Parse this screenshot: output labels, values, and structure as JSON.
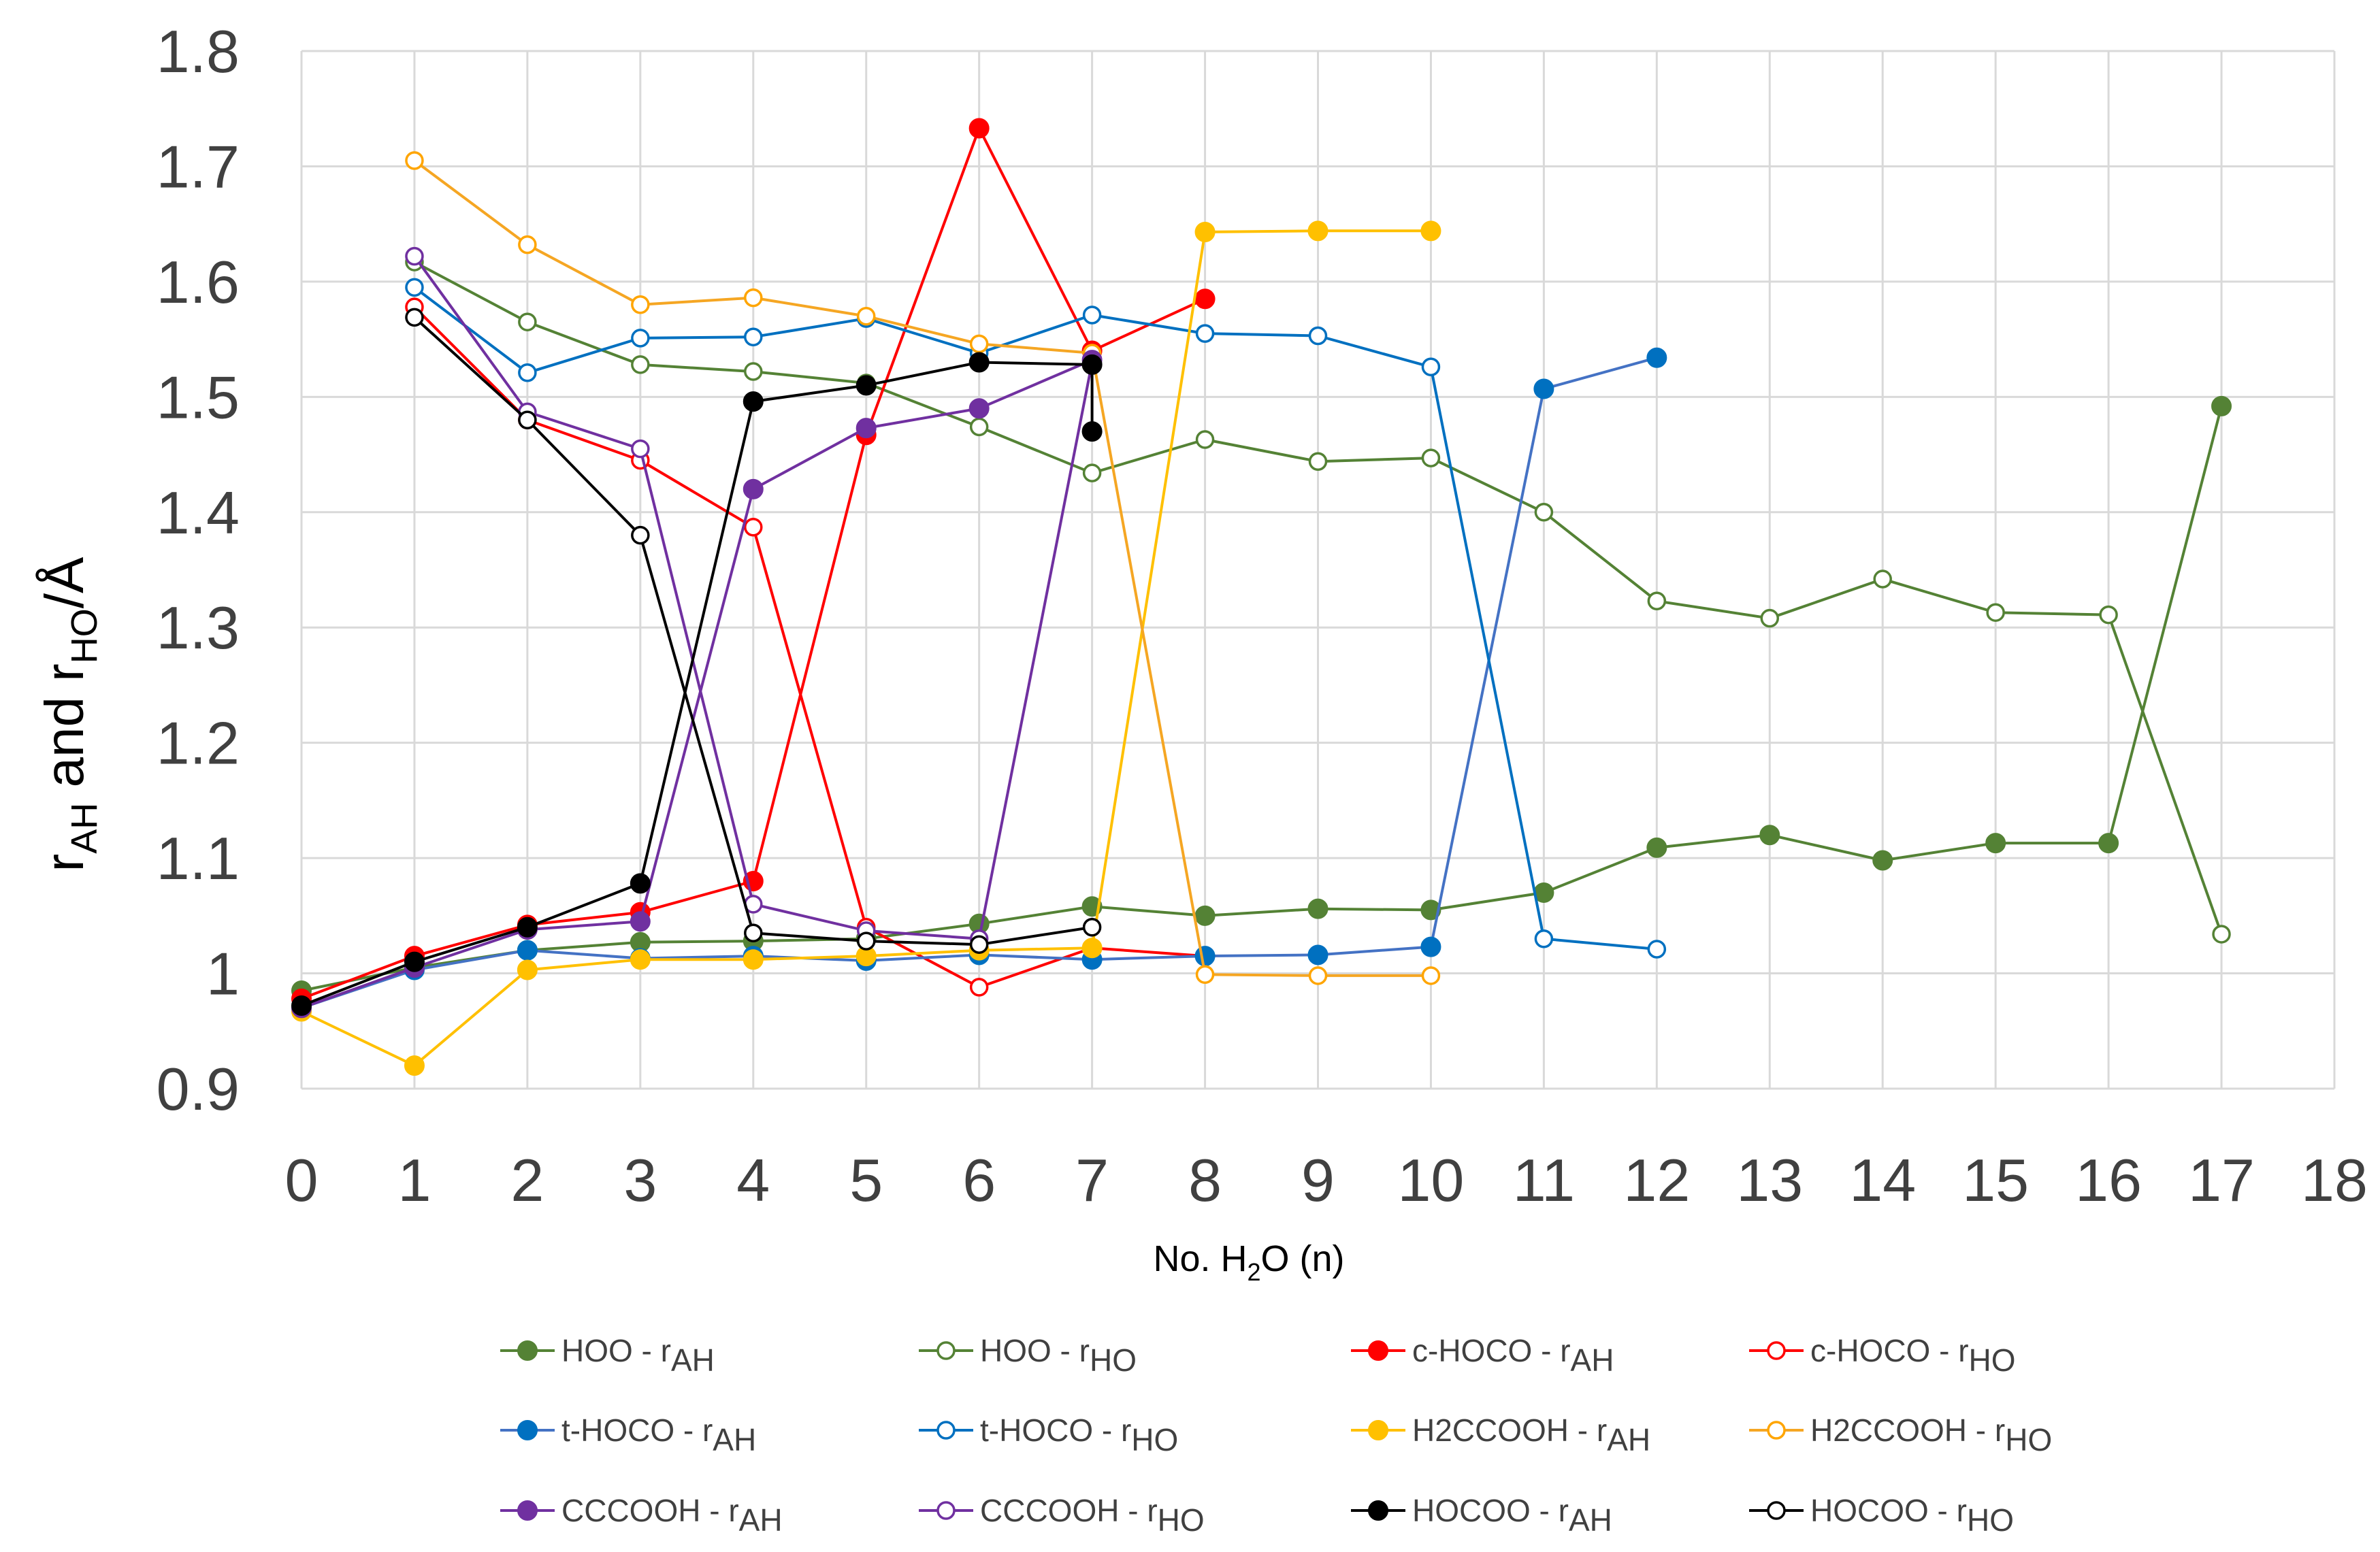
{
  "chart_data": {
    "type": "line",
    "title": "",
    "xlabel": {
      "main": "No. H",
      "sub": "2",
      "rest": "O (n)"
    },
    "ylabel": {
      "r": "r",
      "ah": "AH",
      "and": " and r",
      "ho": "HO",
      "unit": "/Å"
    },
    "xlim": [
      0,
      18
    ],
    "ylim": [
      0.9,
      1.8
    ],
    "xticks": [
      "0",
      "1",
      "2",
      "3",
      "4",
      "5",
      "6",
      "7",
      "8",
      "9",
      "10",
      "11",
      "12",
      "13",
      "14",
      "15",
      "16",
      "17",
      "18"
    ],
    "yticks": [
      "0.9",
      "1",
      "1.1",
      "1.2",
      "1.3",
      "1.4",
      "1.5",
      "1.6",
      "1.7",
      "1.8"
    ],
    "grid": true,
    "legend_position": "bottom",
    "series": [
      {
        "name": "HOO - r",
        "sub": "AH",
        "color": "#548235",
        "filled": true,
        "line_color": "#548235",
        "x": [
          0,
          1,
          2,
          3,
          4,
          5,
          6,
          7,
          8,
          9,
          10,
          11,
          12,
          13,
          14,
          15,
          16,
          17
        ],
        "y": [
          0.985,
          1.005,
          1.02,
          1.027,
          1.028,
          1.03,
          1.043,
          1.058,
          1.05,
          1.056,
          1.055,
          1.07,
          1.109,
          1.12,
          1.098,
          1.113,
          1.113,
          1.492
        ]
      },
      {
        "name": "HOO - r",
        "sub": "HO",
        "color": "#548235",
        "filled": false,
        "line_color": "#548235",
        "x": [
          1,
          2,
          3,
          4,
          5,
          6,
          7,
          8,
          9,
          10,
          11,
          12,
          13,
          14,
          15,
          16,
          17
        ],
        "y": [
          1.617,
          1.565,
          1.528,
          1.522,
          1.512,
          1.474,
          1.434,
          1.463,
          1.444,
          1.447,
          1.4,
          1.323,
          1.308,
          1.342,
          1.313,
          1.311,
          1.034
        ]
      },
      {
        "name": "c-HOCO - r",
        "sub": "AH",
        "color": "#ff0000",
        "filled": true,
        "line_color": "#ff0000",
        "x": [
          0,
          1,
          2,
          3,
          4,
          5,
          6,
          7,
          8
        ],
        "y": [
          0.978,
          1.015,
          1.042,
          1.053,
          1.08,
          1.467,
          1.733,
          1.54,
          1.585
        ]
      },
      {
        "name": "c-HOCO - r",
        "sub": "HO",
        "color": "#ff0000",
        "filled": false,
        "line_color": "#ff0000",
        "x": [
          1,
          2,
          3,
          4,
          5,
          6,
          7,
          8
        ],
        "y": [
          1.578,
          1.48,
          1.445,
          1.387,
          1.04,
          0.988,
          1.022,
          1.015
        ]
      },
      {
        "name": "t-HOCO - r",
        "sub": "AH",
        "color": "#0070c0",
        "filled": true,
        "line_color": "#4472c4",
        "x": [
          0,
          1,
          2,
          3,
          4,
          5,
          6,
          7,
          8,
          9,
          10,
          11,
          12
        ],
        "y": [
          0.97,
          1.003,
          1.02,
          1.013,
          1.015,
          1.011,
          1.016,
          1.012,
          1.015,
          1.016,
          1.023,
          1.507,
          1.534
        ]
      },
      {
        "name": "t-HOCO - r",
        "sub": "HO",
        "color": "#0070c0",
        "filled": false,
        "line_color": "#0070c0",
        "x": [
          1,
          2,
          3,
          4,
          5,
          6,
          7,
          8,
          9,
          10,
          11,
          12
        ],
        "y": [
          1.595,
          1.521,
          1.551,
          1.552,
          1.568,
          1.538,
          1.571,
          1.555,
          1.553,
          1.526,
          1.03,
          1.021
        ]
      },
      {
        "name": "H2CCOOH - r",
        "sub": "AH",
        "color": "#ffc000",
        "filled": true,
        "line_color": "#ffc000",
        "x": [
          0,
          1,
          2,
          3,
          4,
          5,
          6,
          7,
          8,
          9,
          10
        ],
        "y": [
          0.967,
          0.92,
          1.003,
          1.012,
          1.012,
          1.015,
          1.02,
          1.022,
          1.643,
          1.644,
          1.644
        ]
      },
      {
        "name": "H2CCOOH - r",
        "sub": "HO",
        "color": "#ffa500",
        "filled": false,
        "line_color": "#f5a623",
        "x": [
          1,
          2,
          3,
          4,
          5,
          6,
          7,
          8,
          9,
          10
        ],
        "y": [
          1.705,
          1.632,
          1.58,
          1.586,
          1.57,
          1.546,
          1.538,
          0.999,
          0.998,
          0.998
        ]
      },
      {
        "name": "CCCOOH - r",
        "sub": "AH",
        "color": "#7030a0",
        "filled": true,
        "line_color": "#7030a0",
        "x": [
          0,
          1,
          2,
          3,
          4,
          5,
          6,
          7
        ],
        "y": [
          0.97,
          1.005,
          1.038,
          1.045,
          1.42,
          1.473,
          1.49,
          1.532
        ]
      },
      {
        "name": "CCCOOH - r",
        "sub": "HO",
        "color": "#7030a0",
        "filled": false,
        "line_color": "#7030a0",
        "x": [
          1,
          2,
          3,
          4,
          5,
          6,
          7
        ],
        "y": [
          1.622,
          1.487,
          1.455,
          1.06,
          1.037,
          1.03,
          1.53
        ]
      },
      {
        "name": "HOCOO - r",
        "sub": "AH",
        "color": "#000000",
        "filled": true,
        "line_color": "#000000",
        "x": [
          0,
          1,
          2,
          3,
          4,
          5,
          6,
          7,
          7
        ],
        "y": [
          0.972,
          1.01,
          1.04,
          1.078,
          1.496,
          1.51,
          1.53,
          1.528,
          1.47
        ]
      },
      {
        "name": "HOCOO - r",
        "sub": "HO",
        "color": "#000000",
        "filled": false,
        "line_color": "#000000",
        "x": [
          1,
          2,
          3,
          4,
          5,
          6,
          7
        ],
        "y": [
          1.569,
          1.48,
          1.38,
          1.035,
          1.028,
          1.025,
          1.04
        ]
      }
    ]
  }
}
